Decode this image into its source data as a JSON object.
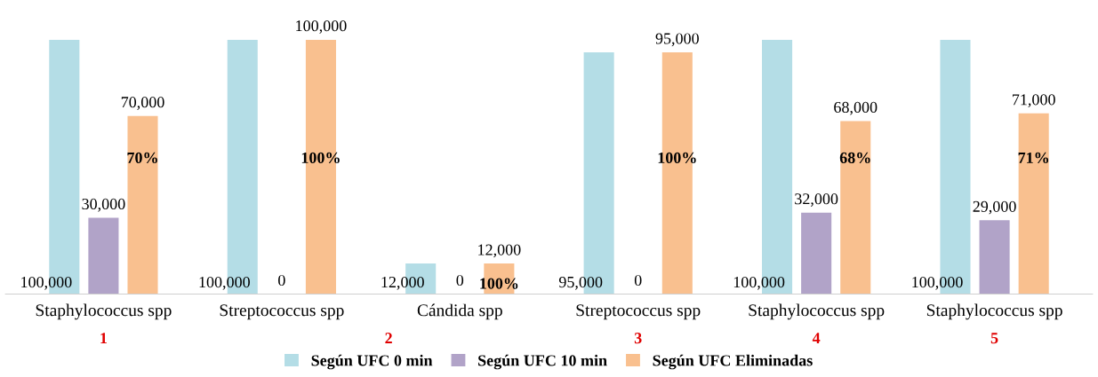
{
  "chart_data": {
    "type": "bar",
    "categories": [
      "Staphylococcus spp",
      "Streptococcus spp",
      "Cándida spp",
      "Streptococcus spp",
      "Staphylococcus spp",
      "Staphylococcus spp"
    ],
    "series": [
      {
        "name": "Según UFC 0 min",
        "color": "#b4dde6",
        "values": [
          100000,
          100000,
          12000,
          95000,
          100000,
          100000
        ],
        "value_labels": [
          "100,000",
          "100,000",
          "12,000",
          "95,000",
          "100,000",
          "100,000"
        ]
      },
      {
        "name": "Según UFC 10 min",
        "color": "#b1a3c8",
        "values": [
          30000,
          0,
          0,
          0,
          32000,
          29000
        ],
        "value_labels": [
          "30,000",
          "0",
          "0",
          "0",
          "32,000",
          "29,000"
        ]
      },
      {
        "name": "Según UFC Eliminadas",
        "color": "#f9c08f",
        "values": [
          70000,
          100000,
          12000,
          95000,
          68000,
          71000
        ],
        "value_labels": [
          "70,000",
          "100,000",
          "12,000",
          "95,000",
          "68,000",
          "71,000"
        ]
      }
    ],
    "annotations": [
      "70%",
      "100%",
      "100%",
      "100%",
      "68%",
      "71%",
      "1",
      "2",
      "3",
      "4",
      "5"
    ],
    "legend": "bottom",
    "grid": false
  }
}
